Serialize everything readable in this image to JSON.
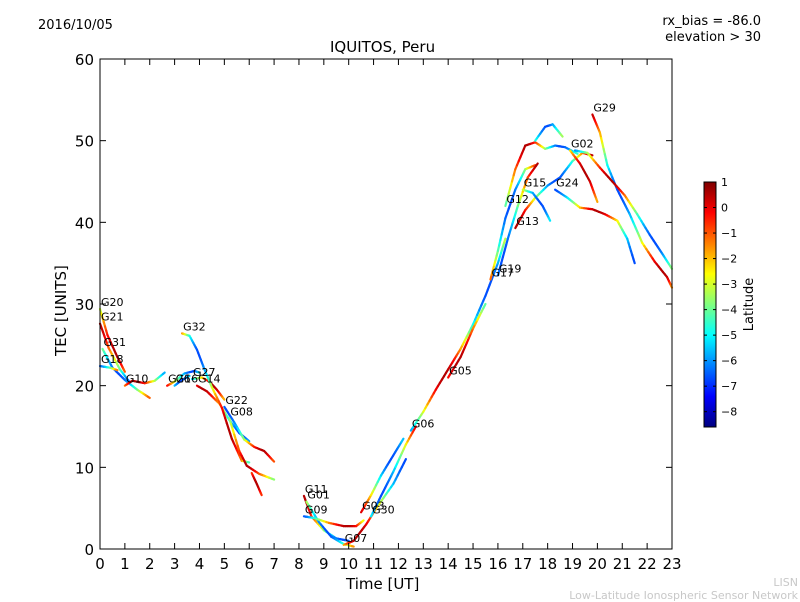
{
  "header": {
    "date": "2016/10/05",
    "rx_bias": "rx_bias = -86.0",
    "elevation": "elevation > 30"
  },
  "watermark": {
    "line1": "LISN",
    "line2": "Low-Latitude Ionospheric Sensor Network"
  },
  "chart_data": {
    "type": "scatter",
    "title": "IQUITOS, Peru",
    "xlabel": "Time [UT]",
    "ylabel": "TEC [UNITS]",
    "xlim": [
      0,
      23
    ],
    "ylim": [
      0,
      60
    ],
    "x_ticks": [
      0,
      1,
      2,
      3,
      4,
      5,
      6,
      7,
      8,
      9,
      10,
      11,
      12,
      13,
      14,
      15,
      16,
      17,
      18,
      19,
      20,
      21,
      22,
      23
    ],
    "y_ticks": [
      0,
      10,
      20,
      30,
      40,
      50,
      60
    ],
    "grid": false,
    "colorbar": {
      "label": "Latitude",
      "min": -8.6,
      "max": 1.0,
      "ticks": [
        1,
        0,
        -1,
        -2,
        -3,
        -4,
        -5,
        -6,
        -7,
        -8
      ],
      "colors": [
        "#00007f",
        "#0000ff",
        "#007fff",
        "#00ffff",
        "#7fff7f",
        "#ffff00",
        "#ff7f00",
        "#ff0000",
        "#7f0000"
      ]
    },
    "series": [
      {
        "name": "G20",
        "points": [
          [
            0.0,
            29.4
          ],
          [
            0.3,
            26.2
          ],
          [
            0.7,
            23.5
          ],
          [
            1.0,
            21.7
          ]
        ]
      },
      {
        "name": "G21",
        "points": [
          [
            0.0,
            27.6
          ],
          [
            0.35,
            24.6
          ],
          [
            0.8,
            22.0
          ],
          [
            1.2,
            20.4
          ]
        ]
      },
      {
        "name": "G31",
        "points": [
          [
            0.1,
            24.5
          ],
          [
            0.5,
            22.2
          ],
          [
            1.0,
            20.7
          ],
          [
            1.5,
            19.5
          ],
          [
            2.0,
            18.5
          ]
        ]
      },
      {
        "name": "G18",
        "points": [
          [
            0.0,
            22.4
          ],
          [
            0.4,
            22.2
          ],
          [
            0.7,
            21.9
          ]
        ]
      },
      {
        "name": "G10",
        "points": [
          [
            1.0,
            20.0
          ],
          [
            1.3,
            20.6
          ],
          [
            1.8,
            20.3
          ],
          [
            2.2,
            20.6
          ],
          [
            2.6,
            21.6
          ]
        ]
      },
      {
        "name": "G26",
        "points": [
          [
            2.7,
            20.0
          ],
          [
            3.0,
            20.5
          ],
          [
            3.4,
            21.5
          ],
          [
            3.8,
            21.8
          ],
          [
            4.0,
            21.6
          ]
        ]
      },
      {
        "name": "G16",
        "points": [
          [
            3.0,
            20.0
          ],
          [
            3.3,
            20.7
          ],
          [
            3.6,
            21.2
          ]
        ]
      },
      {
        "name": "G27",
        "points": [
          [
            3.7,
            20.8
          ],
          [
            4.1,
            21.0
          ],
          [
            4.4,
            20.5
          ],
          [
            4.7,
            19.5
          ],
          [
            5.0,
            18.3
          ]
        ]
      },
      {
        "name": "G14",
        "points": [
          [
            3.9,
            20.0
          ],
          [
            4.3,
            19.3
          ],
          [
            4.8,
            17.8
          ],
          [
            5.2,
            15.8
          ],
          [
            5.6,
            14.2
          ],
          [
            6.0,
            13.2
          ]
        ]
      },
      {
        "name": "G32",
        "points": [
          [
            3.3,
            26.4
          ],
          [
            3.6,
            26.1
          ],
          [
            3.9,
            24.4
          ],
          [
            4.2,
            22.0
          ],
          [
            4.5,
            19.8
          ],
          [
            4.9,
            17.3
          ],
          [
            5.3,
            13.5
          ],
          [
            5.7,
            10.8
          ],
          [
            6.0,
            10.6
          ]
        ]
      },
      {
        "name": "G22",
        "points": [
          [
            5.0,
            17.4
          ],
          [
            5.4,
            15.5
          ],
          [
            5.8,
            13.4
          ],
          [
            6.2,
            12.5
          ],
          [
            6.6,
            12.0
          ],
          [
            7.0,
            10.7
          ]
        ]
      },
      {
        "name": "G08",
        "points": [
          [
            5.2,
            16.0
          ],
          [
            5.6,
            12.0
          ],
          [
            5.9,
            10.2
          ],
          [
            6.4,
            9.2
          ],
          [
            7.0,
            8.5
          ]
        ]
      },
      {
        "name": "G11",
        "points": [
          [
            8.2,
            6.5
          ],
          [
            8.5,
            4.0
          ],
          [
            9.0,
            2.3
          ],
          [
            9.5,
            1.3
          ],
          [
            10.0,
            1.0
          ]
        ]
      },
      {
        "name": "G01",
        "points": [
          [
            8.3,
            5.8
          ],
          [
            8.8,
            3.3
          ],
          [
            9.3,
            1.5
          ],
          [
            9.8,
            0.6
          ],
          [
            10.2,
            0.3
          ]
        ]
      },
      {
        "name": "G09",
        "points": [
          [
            8.2,
            4.0
          ],
          [
            8.6,
            3.8
          ],
          [
            9.2,
            3.2
          ],
          [
            9.8,
            2.8
          ],
          [
            10.3,
            2.8
          ],
          [
            10.6,
            3.5
          ]
        ]
      },
      {
        "name": "G07",
        "points": [
          [
            9.8,
            0.5
          ],
          [
            10.2,
            1.0
          ],
          [
            10.7,
            3.0
          ],
          [
            11.2,
            5.4
          ],
          [
            11.8,
            8.0
          ],
          [
            12.3,
            11.0
          ]
        ]
      },
      {
        "name": "G03",
        "points": [
          [
            10.5,
            4.5
          ],
          [
            10.9,
            6.6
          ],
          [
            11.3,
            9.0
          ],
          [
            11.7,
            11.0
          ],
          [
            12.2,
            13.5
          ]
        ]
      },
      {
        "name": "G30",
        "points": [
          [
            10.9,
            4.0
          ],
          [
            11.3,
            6.5
          ],
          [
            11.8,
            9.5
          ],
          [
            12.3,
            12.8
          ],
          [
            12.7,
            15.0
          ]
        ]
      },
      {
        "name": "G06",
        "points": [
          [
            12.5,
            14.5
          ],
          [
            13.0,
            16.8
          ],
          [
            13.5,
            19.5
          ],
          [
            14.0,
            22.0
          ],
          [
            14.5,
            24.5
          ],
          [
            15.0,
            27.5
          ],
          [
            15.5,
            31.0
          ],
          [
            16.0,
            35.0
          ],
          [
            16.3,
            38.0
          ]
        ]
      },
      {
        "name": "G05",
        "points": [
          [
            14.0,
            21.0
          ],
          [
            14.5,
            23.5
          ],
          [
            15.0,
            27.0
          ],
          [
            15.5,
            30.0
          ]
        ]
      },
      {
        "name": "G17",
        "points": [
          [
            15.7,
            33.0
          ],
          [
            16.0,
            36.5
          ],
          [
            16.3,
            40.5
          ],
          [
            16.7,
            44.0
          ],
          [
            17.1,
            46.5
          ],
          [
            17.5,
            47.0
          ]
        ]
      },
      {
        "name": "G19",
        "points": [
          [
            16.0,
            33.5
          ],
          [
            16.4,
            38.0
          ],
          [
            16.8,
            42.0
          ],
          [
            17.2,
            45.5
          ],
          [
            17.6,
            47.2
          ]
        ]
      },
      {
        "name": "G12",
        "points": [
          [
            16.3,
            42.0
          ],
          [
            16.7,
            46.5
          ],
          [
            17.1,
            49.4
          ],
          [
            17.5,
            49.8
          ],
          [
            17.9,
            49.0
          ],
          [
            18.3,
            49.4
          ],
          [
            18.7,
            49.2
          ],
          [
            19.2,
            48.4
          ]
        ]
      },
      {
        "name": "G13",
        "points": [
          [
            16.7,
            39.3
          ],
          [
            17.1,
            41.5
          ],
          [
            17.5,
            43.0
          ],
          [
            18.0,
            44.5
          ],
          [
            18.5,
            45.5
          ],
          [
            19.0,
            47.5
          ],
          [
            19.4,
            48.5
          ],
          [
            19.8,
            48.2
          ]
        ]
      },
      {
        "name": "G15",
        "points": [
          [
            17.0,
            44.0
          ],
          [
            17.4,
            43.6
          ],
          [
            17.8,
            42.0
          ],
          [
            18.1,
            40.2
          ]
        ]
      },
      {
        "name": "G24",
        "points": [
          [
            18.3,
            44.0
          ],
          [
            18.8,
            43.0
          ],
          [
            19.3,
            41.8
          ],
          [
            19.8,
            41.6
          ],
          [
            20.3,
            41.0
          ],
          [
            20.8,
            40.2
          ],
          [
            21.2,
            38.0
          ],
          [
            21.5,
            35.0
          ]
        ]
      },
      {
        "name": "G02",
        "points": [
          [
            18.9,
            48.8
          ],
          [
            19.3,
            47.2
          ],
          [
            19.7,
            45.0
          ],
          [
            20.0,
            42.5
          ]
        ]
      },
      {
        "name": "G29",
        "points": [
          [
            19.8,
            53.2
          ],
          [
            20.1,
            51.0
          ],
          [
            20.4,
            47.0
          ],
          [
            20.8,
            44.0
          ],
          [
            21.3,
            41.0
          ],
          [
            21.8,
            37.5
          ],
          [
            22.3,
            35.2
          ],
          [
            22.8,
            33.3
          ],
          [
            23.0,
            32.0
          ]
        ]
      },
      {
        "name": "",
        "points": [
          [
            17.5,
            50.0
          ],
          [
            17.9,
            51.7
          ],
          [
            18.2,
            52.0
          ],
          [
            18.6,
            50.5
          ]
        ]
      },
      {
        "name": "",
        "points": [
          [
            19.1,
            48.8
          ],
          [
            19.6,
            48.5
          ],
          [
            20.1,
            46.7
          ],
          [
            20.6,
            45.0
          ],
          [
            21.1,
            43.3
          ],
          [
            21.6,
            41.0
          ],
          [
            22.1,
            38.5
          ],
          [
            22.6,
            36.2
          ],
          [
            23.0,
            34.3
          ]
        ]
      },
      {
        "name": "",
        "points": [
          [
            6.1,
            9.3
          ],
          [
            6.3,
            8.0
          ],
          [
            6.5,
            6.6
          ]
        ]
      }
    ]
  }
}
